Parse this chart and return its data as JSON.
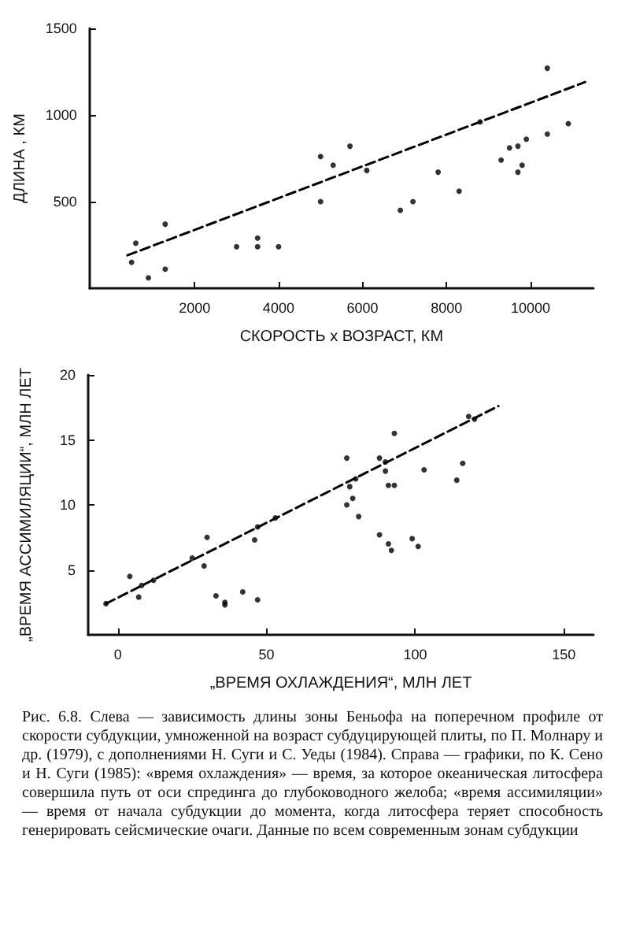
{
  "chart_data": [
    {
      "type": "scatter",
      "xlabel": "СКОРОСТЬ х ВОЗРАСТ, КМ",
      "ylabel": "ДЛИНА , КМ",
      "xlim": [
        -500,
        11500
      ],
      "ylim": [
        0,
        1500
      ],
      "xticks": [
        2000,
        4000,
        6000,
        8000,
        10000
      ],
      "yticks": [
        500,
        1000,
        1500
      ],
      "annotations": [
        "Рис. 6.8. Слева — зависимость длины зоны Беньофа на поперечном профиле от скорости субдукции, умноженной на возраст субдуцирующей плиты, по П. Молнару и др. (1979), с дополнениями Н. Суги и С. Уеды (1984). Справа — графики, по К. Сено и Н. Суги (1985): «время охлаждения» — время, за которое океаническая литосфера совершила путь от оси спрединга до глубоководного желоба; «время ассимиляции» — время от начала субдукции до момента, когда литосфера теряет способность генерировать сейсмические очаги. Данные по всем современным зонам субдукции"
      ],
      "series": [
        {
          "type": "scatter",
          "marker": "circle",
          "color": "#000000",
          "x": [
            10400,
            10900,
            10400,
            9900,
            9700,
            9500,
            9300,
            9800,
            9700,
            8800,
            8300,
            7800,
            7200,
            6900,
            6100,
            5700,
            5000,
            5300,
            5000,
            4000,
            3500,
            3500,
            3000,
            1300,
            600,
            1300,
            500,
            900
          ],
          "values": [
            1270,
            950,
            890,
            860,
            820,
            810,
            740,
            710,
            670,
            960,
            560,
            670,
            500,
            450,
            680,
            820,
            760,
            710,
            500,
            240,
            290,
            240,
            240,
            370,
            260,
            110,
            150,
            60
          ]
        },
        {
          "type": "line",
          "marker": "none",
          "color": "#000000",
          "line_style": "dashed",
          "x": [
            400,
            11300
          ],
          "values": [
            190,
            1190
          ]
        }
      ]
    },
    {
      "type": "scatter",
      "xlabel": "„ВРЕМЯ ОХЛАЖДЕНИЯ“, МЛН ЛЕТ",
      "ylabel": "„ВРЕМЯ АССИМИЛЯЦИИ“, МЛН ЛЕТ",
      "xlim": [
        -10,
        160
      ],
      "ylim": [
        0,
        20
      ],
      "xticks": [
        0,
        50,
        100,
        150
      ],
      "yticks": [
        5,
        10,
        15,
        20
      ],
      "series": [
        {
          "type": "scatter",
          "marker": "circle",
          "color": "#000000",
          "x": [
            118,
            120,
            93,
            88,
            77,
            90,
            116,
            103,
            90,
            114,
            80,
            93,
            91,
            78,
            79,
            77,
            81,
            53,
            47,
            88,
            99,
            91,
            101,
            92,
            46,
            30,
            25,
            29,
            4,
            12,
            8,
            42,
            33,
            47,
            36,
            36,
            7,
            -4
          ],
          "values": [
            16.8,
            16.6,
            15.5,
            13.6,
            13.6,
            13.3,
            13.2,
            12.7,
            12.6,
            11.9,
            12.0,
            11.5,
            11.5,
            11.4,
            10.5,
            10.0,
            9.1,
            9.0,
            8.3,
            7.7,
            7.4,
            7.0,
            6.8,
            6.5,
            7.3,
            7.5,
            5.9,
            5.3,
            4.5,
            4.2,
            3.8,
            3.3,
            3.0,
            2.7,
            2.5,
            2.3,
            2.9,
            2.4
          ]
        },
        {
          "type": "line",
          "marker": "none",
          "color": "#000000",
          "line_style": "dashed",
          "x": [
            -4,
            128
          ],
          "values": [
            2.4,
            17.6
          ]
        }
      ]
    }
  ]
}
